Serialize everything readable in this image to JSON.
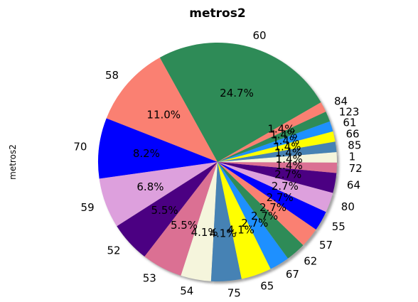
{
  "chart_data": {
    "type": "pie",
    "title": "metros2",
    "ylabel": "metros2",
    "shadow": true,
    "start_angle_deg": 30,
    "direction": "counterclockwise",
    "slices": [
      {
        "label": "60",
        "pct_label": "24.7%",
        "value": 24.7,
        "color": "#2e8b57"
      },
      {
        "label": "58",
        "pct_label": "11.0%",
        "value": 11.0,
        "color": "#fa8072"
      },
      {
        "label": "70",
        "pct_label": "8.2%",
        "value": 8.2,
        "color": "#0000ff"
      },
      {
        "label": "59",
        "pct_label": "6.8%",
        "value": 6.8,
        "color": "#dda0dd"
      },
      {
        "label": "52",
        "pct_label": "5.5%",
        "value": 5.5,
        "color": "#4b0082"
      },
      {
        "label": "53",
        "pct_label": "5.5%",
        "value": 5.5,
        "color": "#db7093"
      },
      {
        "label": "54",
        "pct_label": "4.1%",
        "value": 4.1,
        "color": "#f5f5dc"
      },
      {
        "label": "75",
        "pct_label": "4.1%",
        "value": 4.1,
        "color": "#4682b4"
      },
      {
        "label": "65",
        "pct_label": "4.1%",
        "value": 4.1,
        "color": "#ffff00"
      },
      {
        "label": "67",
        "pct_label": "2.7%",
        "value": 2.7,
        "color": "#1e90ff"
      },
      {
        "label": "62",
        "pct_label": "2.7%",
        "value": 2.7,
        "color": "#2e8b57"
      },
      {
        "label": "57",
        "pct_label": "2.7%",
        "value": 2.7,
        "color": "#fa8072"
      },
      {
        "label": "55",
        "pct_label": "2.7%",
        "value": 2.7,
        "color": "#0000ff"
      },
      {
        "label": "80",
        "pct_label": "2.7%",
        "value": 2.7,
        "color": "#dda0dd"
      },
      {
        "label": "64",
        "pct_label": "2.7%",
        "value": 2.7,
        "color": "#4b0082"
      },
      {
        "label": "72",
        "pct_label": "1.4%",
        "value": 1.4,
        "color": "#db7093"
      },
      {
        "label": "1",
        "pct_label": "1.4%",
        "value": 1.4,
        "color": "#f5f5dc"
      },
      {
        "label": "85",
        "pct_label": "1.4%",
        "value": 1.4,
        "color": "#4682b4"
      },
      {
        "label": "66",
        "pct_label": "1.4%",
        "value": 1.4,
        "color": "#ffff00"
      },
      {
        "label": "61",
        "pct_label": "1.4%",
        "value": 1.4,
        "color": "#1e90ff"
      },
      {
        "label": "123",
        "pct_label": "1.4%",
        "value": 1.4,
        "color": "#2e8b57"
      },
      {
        "label": "84",
        "pct_label": "1.4%",
        "value": 1.4,
        "color": "#fa8072"
      }
    ]
  }
}
